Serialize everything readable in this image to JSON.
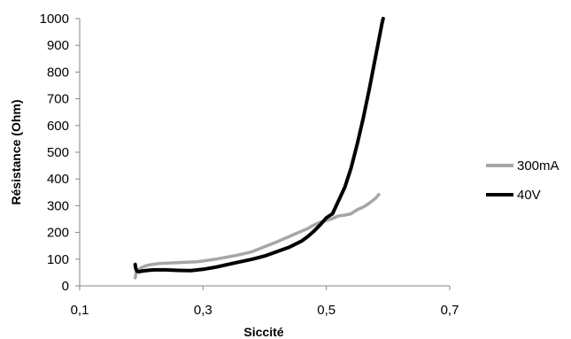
{
  "chart_data": {
    "type": "line",
    "title": "",
    "xlabel": "Siccité",
    "ylabel": "Résistance (Ohm)",
    "xlim": [
      0.1,
      0.7
    ],
    "ylim": [
      0,
      1000
    ],
    "x_ticks": [
      0.1,
      0.3,
      0.5,
      0.7
    ],
    "x_tick_labels": [
      "0,1",
      "0,3",
      "0,5",
      "0,7"
    ],
    "y_ticks": [
      0,
      100,
      200,
      300,
      400,
      500,
      600,
      700,
      800,
      900,
      1000
    ],
    "y_tick_labels": [
      "0",
      "100",
      "200",
      "300",
      "400",
      "500",
      "600",
      "700",
      "800",
      "900",
      "1000"
    ],
    "grid": false,
    "legend_position": "right",
    "series": [
      {
        "name": "300mA",
        "color": "#a6a6a6",
        "x": [
          0.19,
          0.192,
          0.195,
          0.2,
          0.205,
          0.21,
          0.22,
          0.23,
          0.25,
          0.27,
          0.29,
          0.3,
          0.32,
          0.34,
          0.36,
          0.38,
          0.4,
          0.42,
          0.44,
          0.46,
          0.47,
          0.48,
          0.49,
          0.5,
          0.51,
          0.52,
          0.53,
          0.54,
          0.55,
          0.56,
          0.57,
          0.58,
          0.585
        ],
        "y": [
          30,
          55,
          60,
          68,
          73,
          77,
          81,
          84,
          86,
          88,
          90,
          93,
          100,
          108,
          117,
          128,
          147,
          165,
          185,
          205,
          215,
          228,
          238,
          245,
          252,
          262,
          265,
          270,
          285,
          295,
          310,
          328,
          342
        ]
      },
      {
        "name": "40V",
        "color": "#000000",
        "x": [
          0.19,
          0.191,
          0.193,
          0.196,
          0.2,
          0.21,
          0.22,
          0.24,
          0.26,
          0.28,
          0.3,
          0.32,
          0.34,
          0.36,
          0.38,
          0.4,
          0.42,
          0.44,
          0.46,
          0.47,
          0.48,
          0.49,
          0.5,
          0.51,
          0.52,
          0.53,
          0.54,
          0.55,
          0.56,
          0.57,
          0.575,
          0.58,
          0.585,
          0.59,
          0.592
        ],
        "y": [
          80,
          65,
          55,
          53,
          55,
          58,
          60,
          60,
          58,
          57,
          62,
          70,
          80,
          90,
          100,
          112,
          128,
          145,
          168,
          185,
          205,
          228,
          255,
          270,
          320,
          370,
          440,
          530,
          630,
          740,
          800,
          860,
          920,
          980,
          1000
        ]
      }
    ]
  }
}
